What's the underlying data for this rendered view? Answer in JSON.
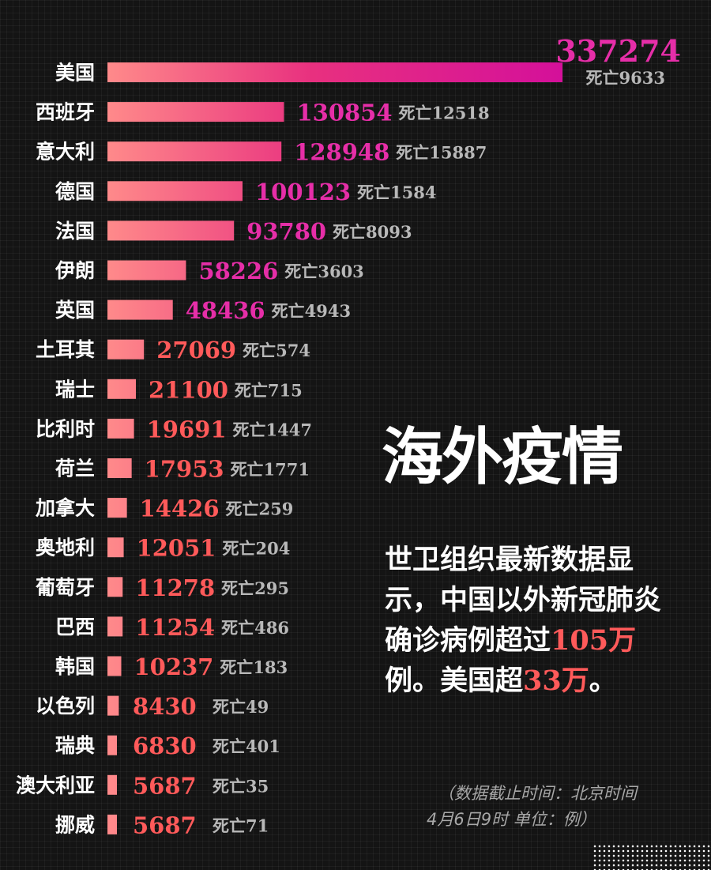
{
  "chart_data": {
    "type": "bar",
    "orientation": "horizontal",
    "categories": [
      "美国",
      "西班牙",
      "意大利",
      "德国",
      "法国",
      "伊朗",
      "英国",
      "土耳其",
      "瑞士",
      "比利时",
      "荷兰",
      "加拿大",
      "奥地利",
      "葡萄牙",
      "巴西",
      "韩国",
      "以色列",
      "瑞典",
      "澳大利亚",
      "挪威"
    ],
    "series": [
      {
        "values": [
          337274,
          130854,
          128948,
          100123,
          93780,
          58226,
          48436,
          27069,
          21100,
          19691,
          17953,
          14426,
          12051,
          11278,
          11254,
          10237,
          8430,
          6830,
          5687,
          5687
        ]
      }
    ],
    "value_labels": [
      "337274",
      "130854",
      "128948",
      "100123",
      "93780",
      "58226",
      "48436",
      "27069",
      "21100",
      "19691",
      "17953",
      "14426",
      "12051",
      "11278",
      "11254",
      "10237",
      "8430",
      "6830",
      "5687",
      "5687"
    ],
    "death_labels": [
      "死亡9633",
      "死亡12518",
      "死亡15887",
      "死亡1584",
      "死亡8093",
      "死亡3603",
      "死亡4943",
      "死亡574",
      "死亡715",
      "死亡1447",
      "死亡1771",
      "死亡259",
      "死亡204",
      "死亡295",
      "死亡486",
      "死亡183",
      "死亡49",
      "死亡401",
      "死亡35",
      "死亡71"
    ],
    "deaths": [
      9633,
      12518,
      15887,
      1584,
      8093,
      3603,
      4943,
      574,
      715,
      1447,
      1771,
      259,
      204,
      295,
      486,
      183,
      49,
      401,
      35,
      71
    ],
    "xlim": [
      0,
      337274
    ],
    "grid": false,
    "legend": "none"
  },
  "colors": {
    "background": "#141414",
    "bar_light": "#ff8a8a",
    "bar_dark": "#d4109a",
    "value_high": "#e62ea8",
    "value_low": "#ff5a5a",
    "death_text": "#b8b8b8",
    "highlight": "#ff5a5a"
  },
  "headline": "海外疫情",
  "summary": {
    "part1": "世卫组织最新数据显示，中国以外新冠肺炎确诊病例超过",
    "num1": "105",
    "part2": "万",
    "part3": "例。美国超",
    "num2": "33万",
    "part4": "。"
  },
  "note": {
    "line1": "（数据截止时间：北京时间",
    "line2": "4月6日9时 单位：例）"
  }
}
